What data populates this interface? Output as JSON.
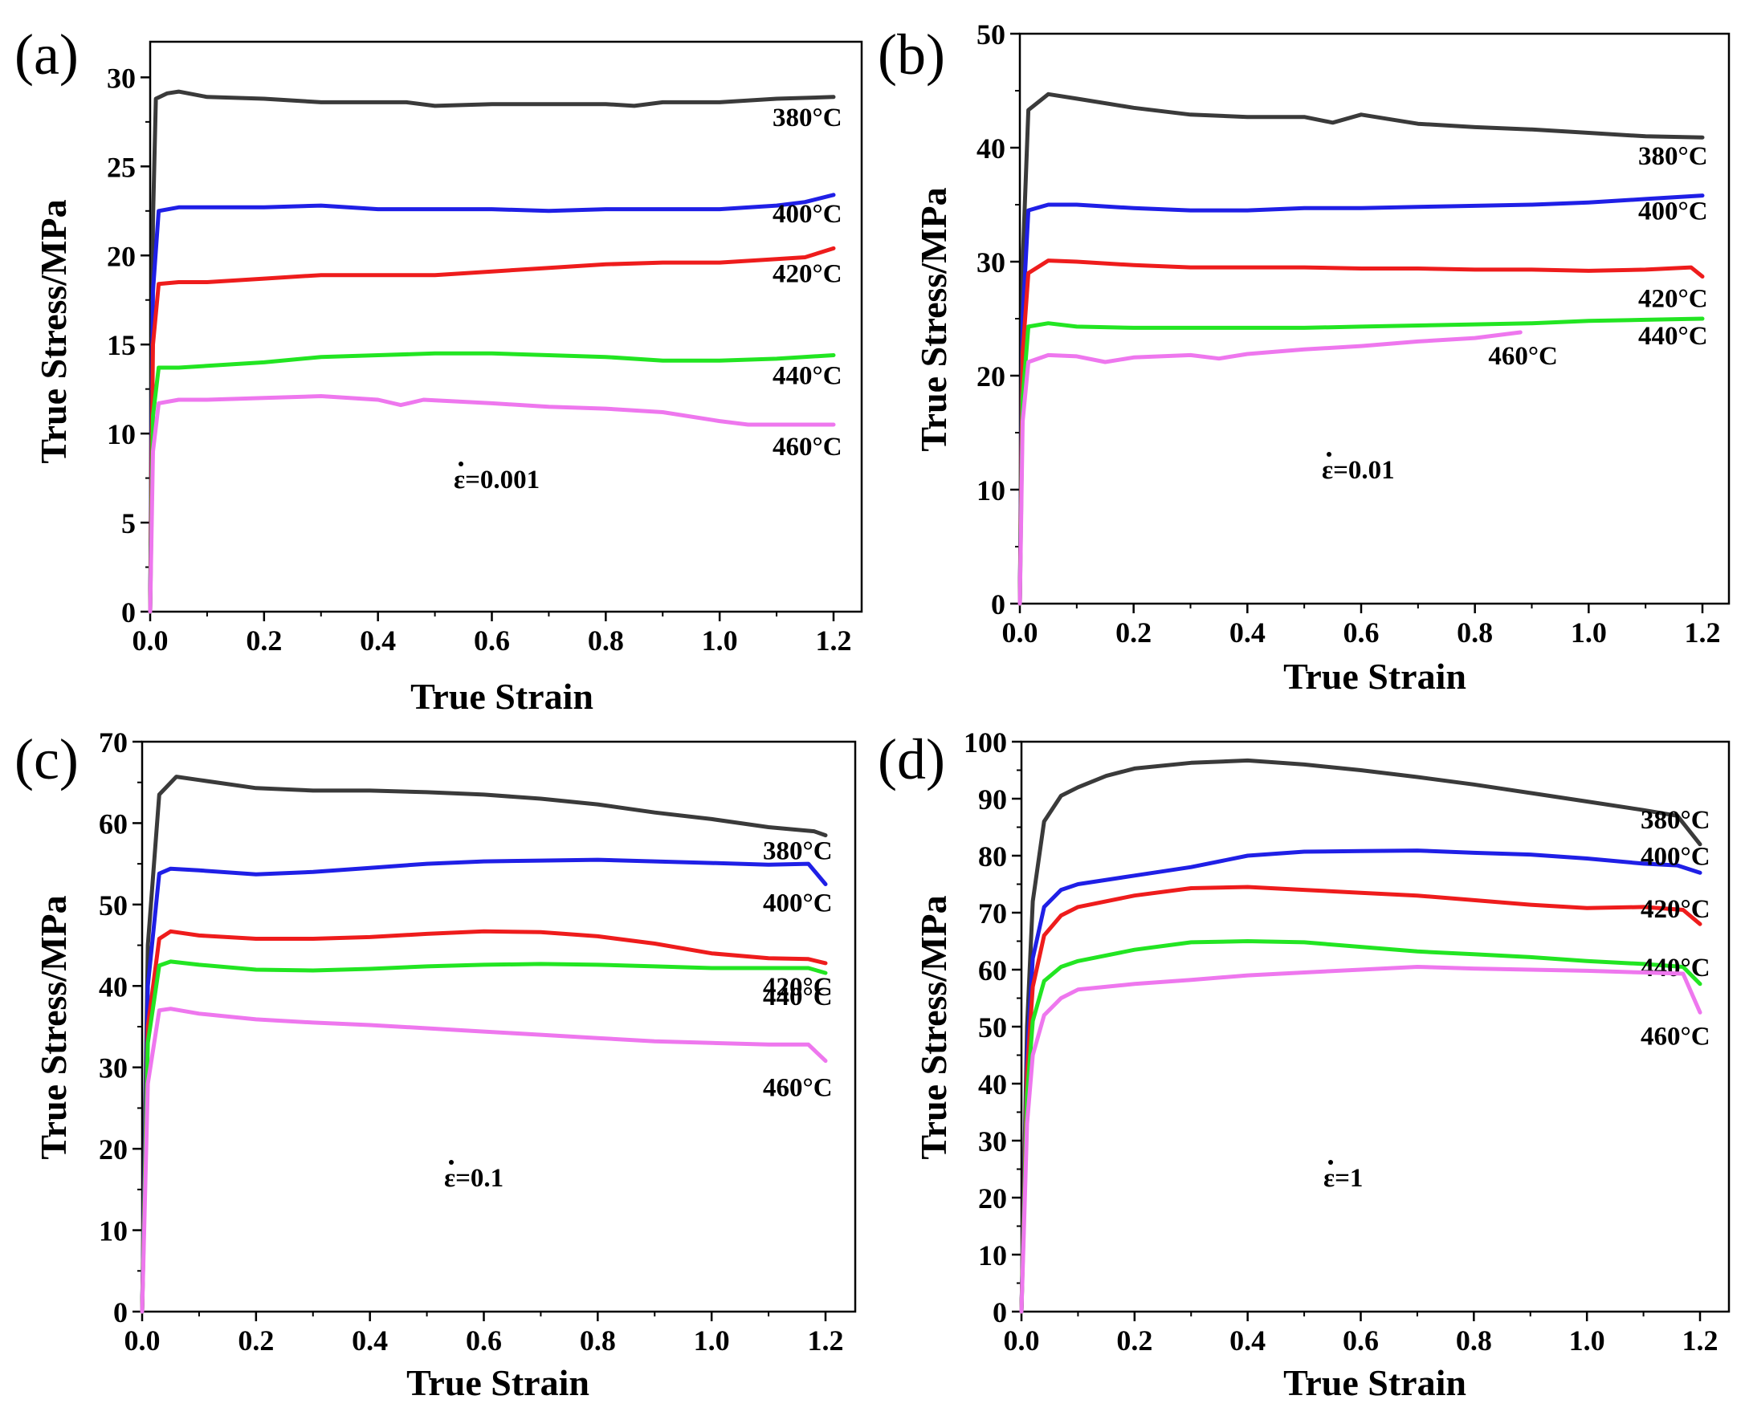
{
  "figure": {
    "colors": {
      "380°C": "#3a3a3a",
      "400°C": "#1f1fe6",
      "420°C": "#ee1c1c",
      "440°C": "#22e522",
      "460°C": "#ee77ee"
    }
  },
  "chart_data": [
    {
      "panel": "(a)",
      "type": "line",
      "xlabel": "True Strain",
      "ylabel": "True Stress/MPa",
      "xlim": [
        0,
        1.2
      ],
      "ylim": [
        0,
        32
      ],
      "xticks": [
        "0.0",
        "0.2",
        "0.4",
        "0.6",
        "0.8",
        "1.0",
        "1.2"
      ],
      "yticks": [
        "0",
        "5",
        "10",
        "15",
        "20",
        "25",
        "30"
      ],
      "annotation": "ε=0.001",
      "series": [
        {
          "name": "380°C",
          "x": [
            0,
            0.005,
            0.01,
            0.03,
            0.05,
            0.1,
            0.2,
            0.3,
            0.45,
            0.5,
            0.6,
            0.7,
            0.8,
            0.85,
            0.9,
            1.0,
            1.1,
            1.2
          ],
          "y": [
            0,
            22,
            28.8,
            29.1,
            29.2,
            28.9,
            28.8,
            28.6,
            28.6,
            28.4,
            28.5,
            28.5,
            28.5,
            28.4,
            28.6,
            28.6,
            28.8,
            28.9
          ]
        },
        {
          "name": "400°C",
          "x": [
            0,
            0.005,
            0.015,
            0.05,
            0.1,
            0.2,
            0.3,
            0.4,
            0.5,
            0.6,
            0.7,
            0.8,
            0.9,
            1.0,
            1.1,
            1.15,
            1.2
          ],
          "y": [
            0,
            18,
            22.5,
            22.7,
            22.7,
            22.7,
            22.8,
            22.6,
            22.6,
            22.6,
            22.5,
            22.6,
            22.6,
            22.6,
            22.8,
            23.0,
            23.4
          ]
        },
        {
          "name": "420°C",
          "x": [
            0,
            0.005,
            0.015,
            0.05,
            0.1,
            0.2,
            0.3,
            0.4,
            0.5,
            0.6,
            0.7,
            0.8,
            0.9,
            1.0,
            1.1,
            1.15,
            1.2
          ],
          "y": [
            0,
            15,
            18.4,
            18.5,
            18.5,
            18.7,
            18.9,
            18.9,
            18.9,
            19.1,
            19.3,
            19.5,
            19.6,
            19.6,
            19.8,
            19.9,
            20.4
          ]
        },
        {
          "name": "440°C",
          "x": [
            0,
            0.005,
            0.015,
            0.05,
            0.1,
            0.2,
            0.3,
            0.4,
            0.5,
            0.6,
            0.7,
            0.8,
            0.9,
            1.0,
            1.1,
            1.2
          ],
          "y": [
            0,
            11,
            13.7,
            13.7,
            13.8,
            14.0,
            14.3,
            14.4,
            14.5,
            14.5,
            14.4,
            14.3,
            14.1,
            14.1,
            14.2,
            14.4
          ]
        },
        {
          "name": "460°C",
          "x": [
            0,
            0.005,
            0.015,
            0.05,
            0.1,
            0.2,
            0.3,
            0.4,
            0.44,
            0.48,
            0.6,
            0.7,
            0.8,
            0.9,
            1.0,
            1.05,
            1.1,
            1.2
          ],
          "y": [
            0,
            9,
            11.7,
            11.9,
            11.9,
            12.0,
            12.1,
            11.9,
            11.6,
            11.9,
            11.7,
            11.5,
            11.4,
            11.2,
            10.7,
            10.5,
            10.5,
            10.5
          ]
        }
      ]
    },
    {
      "panel": "(b)",
      "type": "line",
      "xlabel": "True Strain",
      "ylabel": "True Stress/MPa",
      "xlim": [
        0,
        1.25
      ],
      "ylim": [
        0,
        50
      ],
      "xticks": [
        "0.0",
        "0.2",
        "0.4",
        "0.6",
        "0.8",
        "1.0",
        "1.2"
      ],
      "yticks": [
        "0",
        "10",
        "20",
        "30",
        "40",
        "50"
      ],
      "annotation": "ε=0.01",
      "series": [
        {
          "name": "380°C",
          "x": [
            0,
            0.005,
            0.015,
            0.05,
            0.1,
            0.2,
            0.3,
            0.4,
            0.5,
            0.55,
            0.6,
            0.7,
            0.8,
            0.9,
            1.0,
            1.1,
            1.2
          ],
          "y": [
            0,
            30,
            43.3,
            44.7,
            44.3,
            43.5,
            42.9,
            42.7,
            42.7,
            42.2,
            42.9,
            42.1,
            41.8,
            41.6,
            41.3,
            41.0,
            40.9
          ]
        },
        {
          "name": "400°C",
          "x": [
            0,
            0.005,
            0.015,
            0.05,
            0.1,
            0.2,
            0.3,
            0.4,
            0.5,
            0.6,
            0.7,
            0.8,
            0.9,
            1.0,
            1.1,
            1.2
          ],
          "y": [
            0,
            25,
            34.5,
            35.0,
            35.0,
            34.7,
            34.5,
            34.5,
            34.7,
            34.7,
            34.8,
            34.9,
            35.0,
            35.2,
            35.5,
            35.8
          ]
        },
        {
          "name": "420°C",
          "x": [
            0,
            0.005,
            0.015,
            0.05,
            0.1,
            0.2,
            0.3,
            0.4,
            0.5,
            0.6,
            0.7,
            0.8,
            0.9,
            1.0,
            1.1,
            1.18,
            1.2
          ],
          "y": [
            0,
            22,
            29.0,
            30.1,
            30.0,
            29.7,
            29.5,
            29.5,
            29.5,
            29.4,
            29.4,
            29.3,
            29.3,
            29.2,
            29.3,
            29.5,
            28.7
          ]
        },
        {
          "name": "440°C",
          "x": [
            0,
            0.005,
            0.015,
            0.05,
            0.1,
            0.2,
            0.3,
            0.4,
            0.5,
            0.6,
            0.7,
            0.8,
            0.9,
            1.0,
            1.1,
            1.2
          ],
          "y": [
            0,
            18,
            24.3,
            24.6,
            24.3,
            24.2,
            24.2,
            24.2,
            24.2,
            24.3,
            24.4,
            24.5,
            24.6,
            24.8,
            24.9,
            25.0
          ]
        },
        {
          "name": "460°C",
          "x": [
            0,
            0.005,
            0.015,
            0.05,
            0.1,
            0.15,
            0.2,
            0.3,
            0.35,
            0.4,
            0.5,
            0.6,
            0.7,
            0.8,
            0.88
          ],
          "y": [
            0,
            16,
            21.2,
            21.8,
            21.7,
            21.2,
            21.6,
            21.8,
            21.5,
            21.9,
            22.3,
            22.6,
            23.0,
            23.3,
            23.8
          ]
        }
      ]
    },
    {
      "panel": "(c)",
      "type": "line",
      "xlabel": "True Strain",
      "ylabel": "True Stress/MPa",
      "xlim": [
        0,
        1.25
      ],
      "ylim": [
        0,
        70
      ],
      "xticks": [
        "0.0",
        "0.2",
        "0.4",
        "0.6",
        "0.8",
        "1.0",
        "1.2"
      ],
      "yticks": [
        "0",
        "10",
        "20",
        "30",
        "40",
        "50",
        "60",
        "70"
      ],
      "annotation": "ε=0.1",
      "series": [
        {
          "name": "380°C",
          "x": [
            0,
            0.01,
            0.03,
            0.06,
            0.1,
            0.2,
            0.3,
            0.4,
            0.5,
            0.6,
            0.7,
            0.8,
            0.9,
            1.0,
            1.1,
            1.18,
            1.2
          ],
          "y": [
            0,
            45,
            63.5,
            65.7,
            65.3,
            64.3,
            64.0,
            64.0,
            63.8,
            63.5,
            63.0,
            62.3,
            61.3,
            60.5,
            59.5,
            59.0,
            58.5
          ]
        },
        {
          "name": "400°C",
          "x": [
            0,
            0.01,
            0.03,
            0.05,
            0.1,
            0.2,
            0.3,
            0.4,
            0.5,
            0.6,
            0.7,
            0.8,
            0.9,
            1.0,
            1.1,
            1.17,
            1.2
          ],
          "y": [
            0,
            40,
            53.8,
            54.4,
            54.2,
            53.7,
            54.0,
            54.5,
            55.0,
            55.3,
            55.4,
            55.5,
            55.3,
            55.1,
            54.9,
            55.0,
            52.5
          ]
        },
        {
          "name": "420°C",
          "x": [
            0,
            0.01,
            0.03,
            0.05,
            0.1,
            0.2,
            0.3,
            0.4,
            0.5,
            0.6,
            0.7,
            0.8,
            0.9,
            1.0,
            1.1,
            1.17,
            1.2
          ],
          "y": [
            0,
            35,
            45.8,
            46.7,
            46.2,
            45.8,
            45.8,
            46.0,
            46.4,
            46.7,
            46.6,
            46.1,
            45.2,
            44.0,
            43.4,
            43.3,
            42.8
          ]
        },
        {
          "name": "440°C",
          "x": [
            0,
            0.01,
            0.03,
            0.05,
            0.1,
            0.2,
            0.3,
            0.4,
            0.5,
            0.6,
            0.7,
            0.8,
            0.9,
            1.0,
            1.1,
            1.17,
            1.2
          ],
          "y": [
            0,
            33,
            42.5,
            43.0,
            42.6,
            42.0,
            41.9,
            42.1,
            42.4,
            42.6,
            42.7,
            42.6,
            42.4,
            42.2,
            42.2,
            42.2,
            41.6
          ]
        },
        {
          "name": "460°C",
          "x": [
            0,
            0.01,
            0.03,
            0.05,
            0.1,
            0.2,
            0.3,
            0.4,
            0.5,
            0.6,
            0.7,
            0.8,
            0.9,
            1.0,
            1.1,
            1.17,
            1.2
          ],
          "y": [
            0,
            28,
            37.0,
            37.2,
            36.6,
            35.9,
            35.5,
            35.2,
            34.8,
            34.4,
            34.0,
            33.6,
            33.2,
            33.0,
            32.8,
            32.8,
            30.8
          ]
        }
      ]
    },
    {
      "panel": "(d)",
      "type": "line",
      "xlabel": "True Strain",
      "ylabel": "True Stress/MPa",
      "xlim": [
        0,
        1.25
      ],
      "ylim": [
        0,
        100
      ],
      "xticks": [
        "0.0",
        "0.2",
        "0.4",
        "0.6",
        "0.8",
        "1.0",
        "1.2"
      ],
      "yticks": [
        "0",
        "10",
        "20",
        "30",
        "40",
        "50",
        "60",
        "70",
        "80",
        "90",
        "100"
      ],
      "annotation": "ε=1",
      "series": [
        {
          "name": "380°C",
          "x": [
            0,
            0.01,
            0.02,
            0.04,
            0.07,
            0.1,
            0.15,
            0.2,
            0.3,
            0.4,
            0.5,
            0.6,
            0.7,
            0.8,
            0.9,
            1.0,
            1.1,
            1.16,
            1.2
          ],
          "y": [
            0,
            50,
            72,
            86,
            90.5,
            92,
            94,
            95.3,
            96.3,
            96.7,
            96.0,
            95.0,
            93.8,
            92.5,
            91.0,
            89.5,
            88.0,
            87.0,
            82.0
          ]
        },
        {
          "name": "400°C",
          "x": [
            0,
            0.01,
            0.02,
            0.04,
            0.07,
            0.1,
            0.2,
            0.3,
            0.4,
            0.5,
            0.6,
            0.7,
            0.8,
            0.9,
            1.0,
            1.1,
            1.16,
            1.2
          ],
          "y": [
            0,
            45,
            62,
            71,
            74,
            75,
            76.5,
            78,
            80,
            80.7,
            80.8,
            80.9,
            80.5,
            80.2,
            79.5,
            78.6,
            78.3,
            77.0
          ]
        },
        {
          "name": "420°C",
          "x": [
            0,
            0.01,
            0.02,
            0.04,
            0.07,
            0.1,
            0.2,
            0.3,
            0.4,
            0.5,
            0.6,
            0.7,
            0.8,
            0.9,
            1.0,
            1.1,
            1.17,
            1.2
          ],
          "y": [
            0,
            42,
            57,
            66,
            69.5,
            71,
            73,
            74.3,
            74.5,
            74.0,
            73.5,
            73.0,
            72.2,
            71.4,
            70.8,
            71.0,
            70.5,
            68.0
          ]
        },
        {
          "name": "440°C",
          "x": [
            0,
            0.01,
            0.02,
            0.04,
            0.07,
            0.1,
            0.2,
            0.3,
            0.4,
            0.5,
            0.6,
            0.7,
            0.8,
            0.9,
            1.0,
            1.1,
            1.17,
            1.2
          ],
          "y": [
            0,
            38,
            51,
            58,
            60.5,
            61.5,
            63.5,
            64.8,
            65.0,
            64.8,
            64.0,
            63.2,
            62.7,
            62.2,
            61.5,
            61.0,
            60.5,
            57.5
          ]
        },
        {
          "name": "460°C",
          "x": [
            0,
            0.01,
            0.02,
            0.04,
            0.07,
            0.1,
            0.2,
            0.3,
            0.4,
            0.5,
            0.6,
            0.7,
            0.8,
            0.9,
            1.0,
            1.1,
            1.17,
            1.2
          ],
          "y": [
            0,
            33,
            45,
            52,
            55,
            56.5,
            57.5,
            58.2,
            59.0,
            59.5,
            60.0,
            60.5,
            60.2,
            60.0,
            59.8,
            59.5,
            59.3,
            52.5
          ]
        }
      ]
    }
  ]
}
